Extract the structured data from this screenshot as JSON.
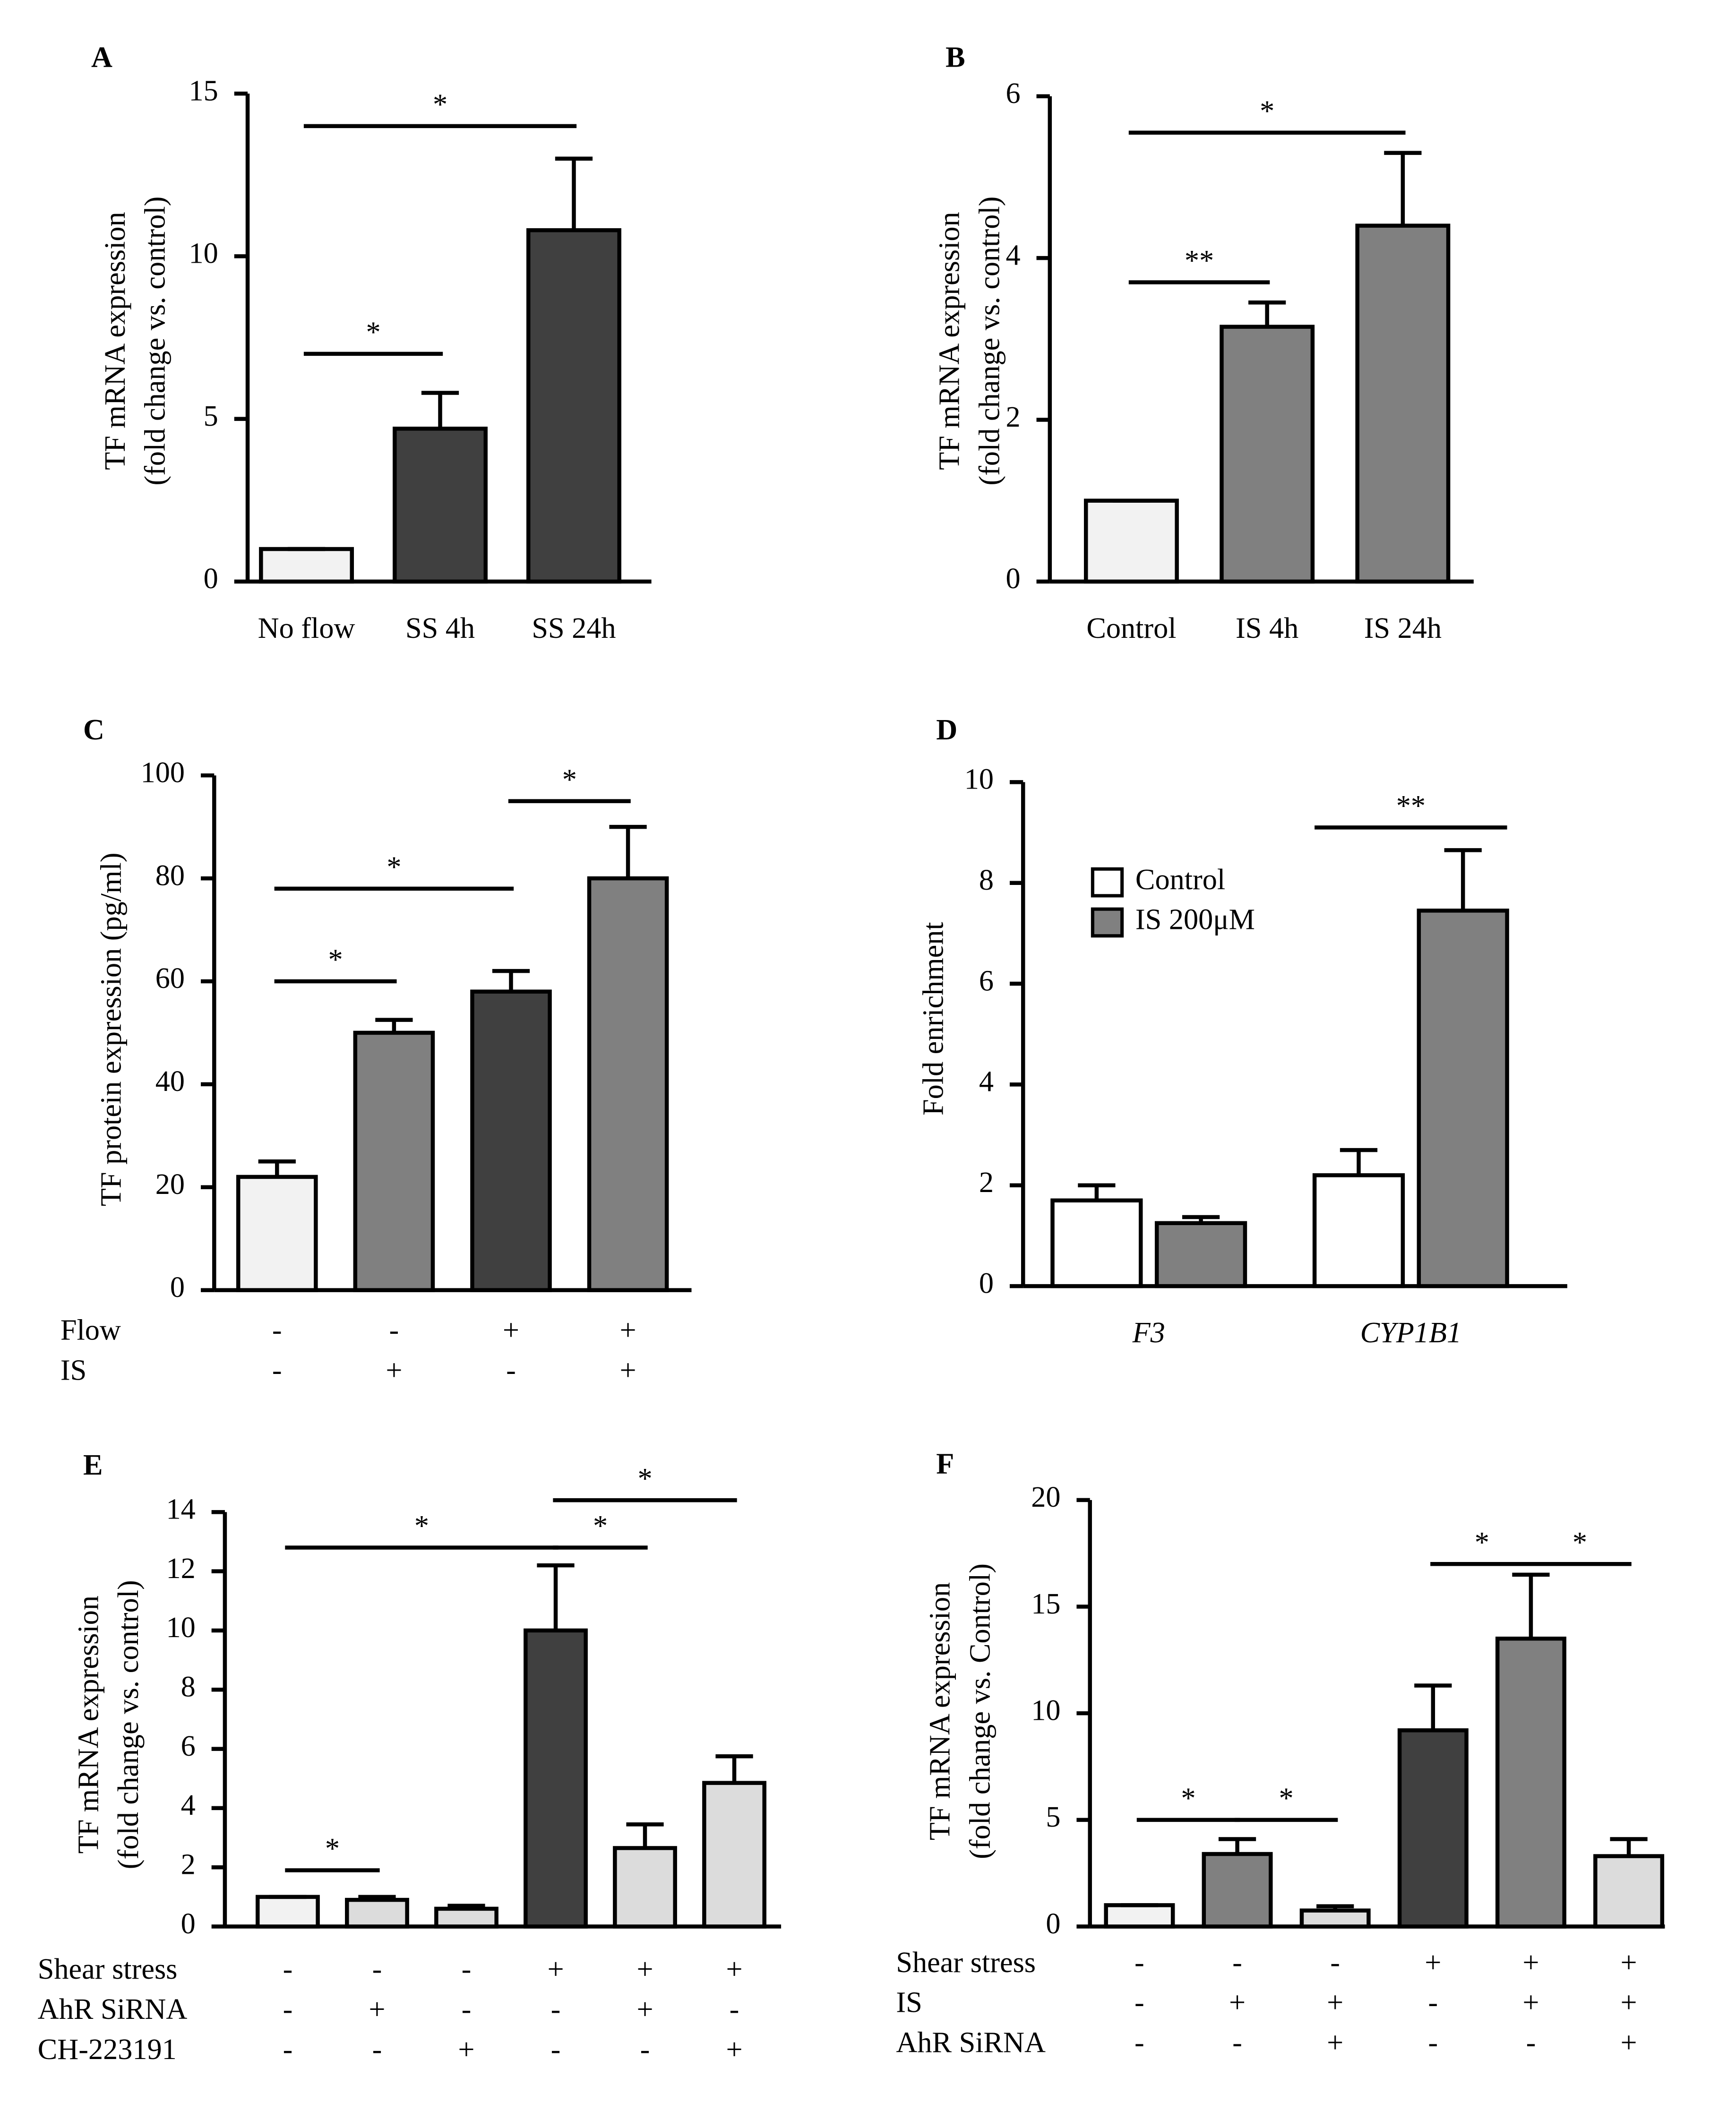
{
  "chart_data": [
    {
      "type": "bar",
      "panel": "A",
      "ylabel": [
        "TF mRNA expression",
        "(fold change vs. control)"
      ],
      "categories": [
        "No flow",
        "SS 4h",
        "SS 24h"
      ],
      "values": [
        1,
        4.7,
        10.8
      ],
      "errors": [
        0,
        1.1,
        2.2
      ],
      "colors": [
        "#f2f2f2",
        "#404040",
        "#404040"
      ],
      "ylim": [
        0,
        15
      ],
      "yticks": [
        0,
        5,
        10,
        15
      ],
      "annotations": [
        {
          "text": "*",
          "between": [
            0,
            1
          ],
          "y": 7
        },
        {
          "text": "*",
          "between": [
            0,
            2
          ],
          "y": 14
        }
      ]
    },
    {
      "type": "bar",
      "panel": "B",
      "ylabel": [
        "TF mRNA expression",
        "(fold change vs. control)"
      ],
      "categories": [
        "Control",
        "IS 4h",
        "IS 24h"
      ],
      "values": [
        1,
        3.15,
        4.4
      ],
      "errors": [
        0,
        0.3,
        0.9
      ],
      "colors": [
        "#f2f2f2",
        "#808080",
        "#808080"
      ],
      "ylim": [
        0,
        6
      ],
      "yticks": [
        0,
        2,
        4,
        6
      ],
      "annotations": [
        {
          "text": "**",
          "between": [
            0,
            1
          ],
          "y": 3.7
        },
        {
          "text": "*",
          "between": [
            0,
            2
          ],
          "y": 5.55
        }
      ]
    },
    {
      "type": "bar",
      "panel": "C",
      "ylabel": [
        "TF protein expression (pg/ml)"
      ],
      "categories": [
        null,
        null,
        null,
        null
      ],
      "values": [
        22,
        50,
        58,
        80
      ],
      "errors": [
        3,
        2.5,
        4,
        10
      ],
      "colors": [
        "#f2f2f2",
        "#808080",
        "#404040",
        "#808080"
      ],
      "ylim": [
        0,
        100
      ],
      "yticks": [
        0,
        20,
        40,
        60,
        80,
        100
      ],
      "annotations": [
        {
          "text": "*",
          "between": [
            0,
            1
          ],
          "y": 60
        },
        {
          "text": "*",
          "between": [
            0,
            2
          ],
          "y": 78
        },
        {
          "text": "*",
          "between": [
            2,
            3
          ],
          "y": 95
        }
      ],
      "conditions": [
        {
          "name": "Flow",
          "values": [
            "-",
            "-",
            "+",
            "+"
          ]
        },
        {
          "name": "IS",
          "values": [
            "-",
            "+",
            "-",
            "+"
          ]
        }
      ]
    },
    {
      "type": "bar",
      "panel": "D",
      "ylabel": [
        "Fold enrichment"
      ],
      "categories": [
        "F3",
        "CYP1B1"
      ],
      "series": [
        {
          "name": "Control",
          "color": "#ffffff",
          "values": [
            1.7,
            2.2
          ],
          "errors": [
            0.3,
            0.5
          ]
        },
        {
          "name": "IS 200μM",
          "color": "#808080",
          "values": [
            1.25,
            7.45
          ],
          "errors": [
            0.12,
            1.2
          ]
        }
      ],
      "ylim": [
        0,
        10
      ],
      "yticks": [
        0,
        2,
        4,
        6,
        8,
        10
      ],
      "legend": "upper left",
      "annotations": [
        {
          "text": "**",
          "between": [
            1,
            1
          ],
          "y": 9.1
        }
      ]
    },
    {
      "type": "bar",
      "panel": "E",
      "ylabel": [
        "TF mRNA expression",
        "(fold change vs. control)"
      ],
      "categories": [
        null,
        null,
        null,
        null,
        null,
        null
      ],
      "values": [
        1,
        0.9,
        0.6,
        10,
        2.65,
        4.85
      ],
      "errors": [
        0,
        0.1,
        0.1,
        2.2,
        0.8,
        0.9
      ],
      "colors": [
        "#f2f2f2",
        "#dcdcdc",
        "#dcdcdc",
        "#404040",
        "#dcdcdc",
        "#dcdcdc"
      ],
      "ylim": [
        0,
        14
      ],
      "yticks": [
        0,
        2,
        4,
        6,
        8,
        10,
        12,
        14
      ],
      "annotations": [
        {
          "text": "*",
          "between": [
            0,
            1
          ],
          "y": 1.9
        },
        {
          "text": "*",
          "between": [
            0,
            3
          ],
          "y": 12.8
        },
        {
          "text": "*",
          "between": [
            3,
            4
          ],
          "y": 12.8
        },
        {
          "text": "*",
          "between": [
            3,
            5
          ],
          "y": 14.4
        }
      ],
      "conditions": [
        {
          "name": "Shear stress",
          "values": [
            "-",
            "-",
            "-",
            "+",
            "+",
            "+"
          ]
        },
        {
          "name": "AhR SiRNA",
          "values": [
            "-",
            "+",
            "-",
            "-",
            "+",
            "-"
          ]
        },
        {
          "name": "CH-223191",
          "values": [
            "-",
            "-",
            "+",
            "-",
            "-",
            "+"
          ]
        }
      ]
    },
    {
      "type": "bar",
      "panel": "F",
      "ylabel": [
        "TF mRNA expression",
        "(fold change vs. Control)"
      ],
      "categories": [
        null,
        null,
        null,
        null,
        null,
        null
      ],
      "values": [
        1,
        3.4,
        0.75,
        9.2,
        13.5,
        3.3
      ],
      "errors": [
        0,
        0.7,
        0.2,
        2.1,
        3.0,
        0.8
      ],
      "colors": [
        "#f2f2f2",
        "#808080",
        "#dcdcdc",
        "#404040",
        "#808080",
        "#dcdcdc"
      ],
      "ylim": [
        0,
        20
      ],
      "yticks": [
        0,
        5,
        10,
        15,
        20
      ],
      "annotations": [
        {
          "text": "*",
          "between": [
            0,
            1
          ],
          "y": 5
        },
        {
          "text": "*",
          "between": [
            1,
            2
          ],
          "y": 5
        },
        {
          "text": "*",
          "between": [
            3,
            4
          ],
          "y": 17
        },
        {
          "text": "*",
          "between": [
            4,
            5
          ],
          "y": 17
        }
      ],
      "conditions": [
        {
          "name": "Shear stress",
          "values": [
            "-",
            "-",
            "-",
            "+",
            "+",
            "+"
          ]
        },
        {
          "name": "IS",
          "values": [
            "-",
            "+",
            "+",
            "-",
            "+",
            "+"
          ]
        },
        {
          "name": "AhR SiRNA",
          "values": [
            "-",
            "-",
            "+",
            "-",
            "-",
            "+"
          ]
        }
      ]
    }
  ]
}
